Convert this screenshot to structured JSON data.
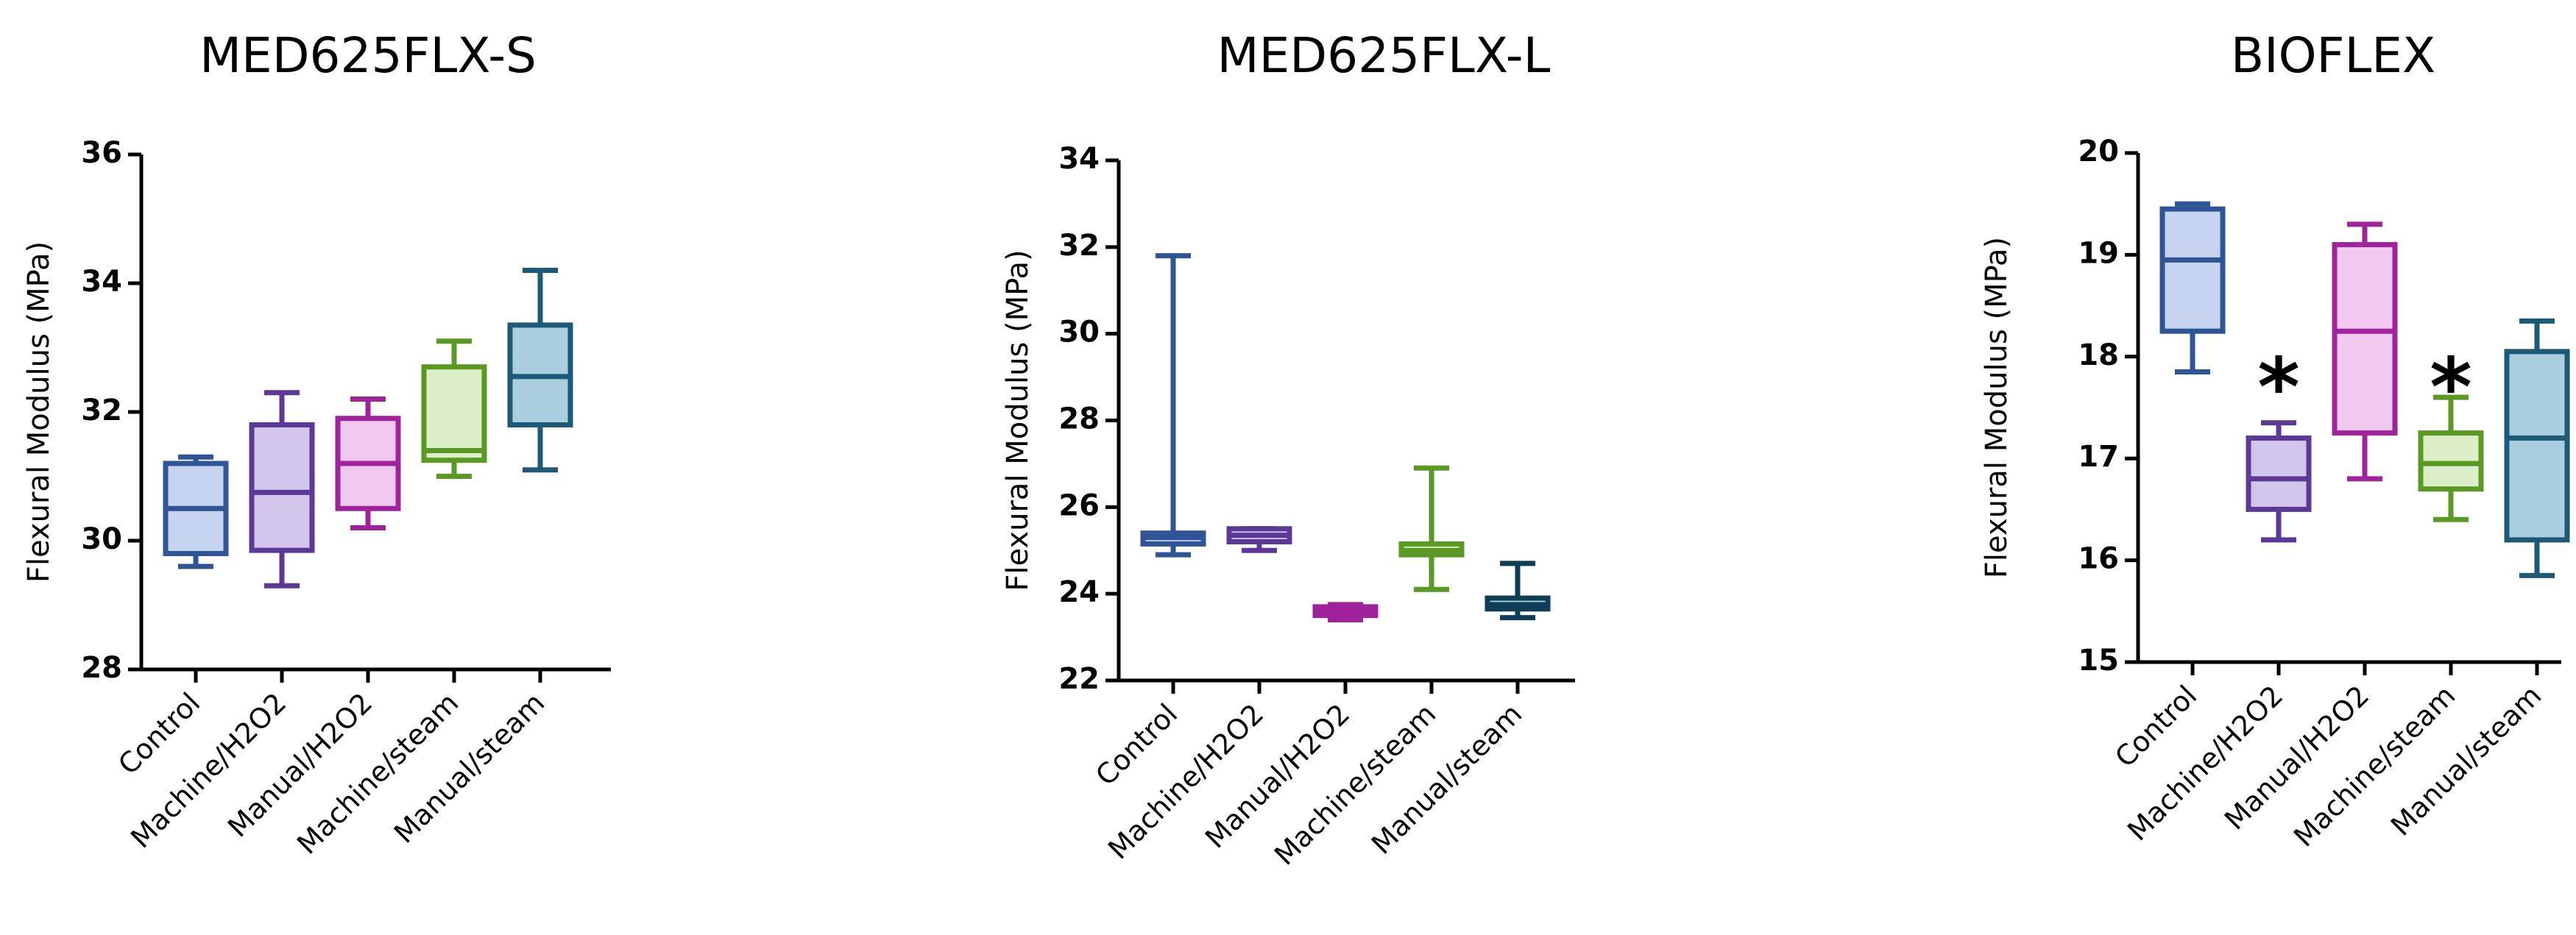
{
  "chart_data": [
    {
      "type": "box",
      "title": "MED625FLX-S",
      "ylabel": "Flexural Modulus (MPa)",
      "ylim": [
        28,
        36
      ],
      "yticks": [
        28,
        30,
        32,
        34,
        36
      ],
      "categories": [
        "Control",
        "Machine/H2O2",
        "Manual/H2O2",
        "Machine/steam",
        "Manual/steam"
      ],
      "boxes": [
        {
          "min": 29.6,
          "q1": 29.8,
          "median": 30.5,
          "q3": 31.2,
          "max": 31.3,
          "color": "#2f5597",
          "fill": "#c5d3ef"
        },
        {
          "min": 29.3,
          "q1": 29.85,
          "median": 30.75,
          "q3": 31.8,
          "max": 32.3,
          "color": "#5b3a97",
          "fill": "#d3c6ec"
        },
        {
          "min": 30.2,
          "q1": 30.5,
          "median": 31.2,
          "q3": 31.9,
          "max": 32.2,
          "color": "#a0239b",
          "fill": "#f1c9ef"
        },
        {
          "min": 31.0,
          "q1": 31.25,
          "median": 31.4,
          "q3": 32.7,
          "max": 33.1,
          "color": "#5a9a24",
          "fill": "#dcefc8"
        },
        {
          "min": 31.1,
          "q1": 31.8,
          "median": 32.55,
          "q3": 33.35,
          "max": 34.2,
          "color": "#1d5a78",
          "fill": "#a9cfdf"
        }
      ],
      "annotations": []
    },
    {
      "type": "box",
      "title": "MED625FLX-L",
      "ylabel": "Flexural Modulus (MPa)",
      "ylim": [
        22,
        34
      ],
      "yticks": [
        22,
        24,
        26,
        28,
        30,
        32,
        34
      ],
      "categories": [
        "Control",
        "Machine/H2O2",
        "Manual/H2O2",
        "Machine/steam",
        "Manual/steam"
      ],
      "boxes": [
        {
          "min": 24.9,
          "q1": 25.15,
          "median": 25.3,
          "q3": 25.4,
          "max": 31.8,
          "color": "#2f5597",
          "fill": "#c5d3ef"
        },
        {
          "min": 25.0,
          "q1": 25.2,
          "median": 25.35,
          "q3": 25.5,
          "max": 25.5,
          "color": "#5b3a97",
          "fill": "#d3c6ec"
        },
        {
          "min": 23.4,
          "q1": 23.5,
          "median": 23.6,
          "q3": 23.7,
          "max": 23.75,
          "color": "#a0239b",
          "fill": "#f1c9ef"
        },
        {
          "min": 24.1,
          "q1": 24.9,
          "median": 25.0,
          "q3": 25.15,
          "max": 26.9,
          "color": "#5a9a24",
          "fill": "#dcefc8"
        },
        {
          "min": 23.45,
          "q1": 23.65,
          "median": 23.75,
          "q3": 23.9,
          "max": 24.7,
          "color": "#0f3d57",
          "fill": "#a9cfdf"
        }
      ],
      "annotations": []
    },
    {
      "type": "box",
      "title": "BIOFLEX",
      "ylabel": "Flexural Modulus (MPa)",
      "ylim": [
        15,
        20
      ],
      "yticks": [
        15,
        16,
        17,
        18,
        19,
        20
      ],
      "categories": [
        "Control",
        "Machine/H2O2",
        "Manual/H2O2",
        "Machine/steam",
        "Manual/steam"
      ],
      "boxes": [
        {
          "min": 17.85,
          "q1": 18.25,
          "median": 18.95,
          "q3": 19.45,
          "max": 19.5,
          "color": "#2f5597",
          "fill": "#c5d3ef"
        },
        {
          "min": 16.2,
          "q1": 16.5,
          "median": 16.8,
          "q3": 17.2,
          "max": 17.35,
          "color": "#5b3a97",
          "fill": "#d3c6ec"
        },
        {
          "min": 16.8,
          "q1": 17.25,
          "median": 18.25,
          "q3": 19.1,
          "max": 19.3,
          "color": "#a0239b",
          "fill": "#f1c9ef"
        },
        {
          "min": 16.4,
          "q1": 16.7,
          "median": 16.95,
          "q3": 17.25,
          "max": 17.6,
          "color": "#5a9a24",
          "fill": "#dcefc8"
        },
        {
          "min": 15.85,
          "q1": 16.2,
          "median": 17.2,
          "q3": 18.05,
          "max": 18.35,
          "color": "#1d5a78",
          "fill": "#a9cfdf"
        }
      ],
      "annotations": [
        {
          "category": "Machine/H2O2",
          "text": "*",
          "y": 17.75
        },
        {
          "category": "Machine/steam",
          "text": "*",
          "y": 17.75
        }
      ]
    }
  ]
}
